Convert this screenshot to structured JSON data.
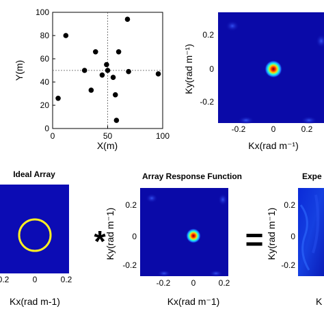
{
  "chart_data": [
    {
      "id": "antenna-layout",
      "type": "scatter",
      "title": "",
      "xlabel": "X(m)",
      "ylabel": "Y(m)",
      "xlim": [
        0,
        100
      ],
      "ylim": [
        0,
        100
      ],
      "xticks": [
        "0",
        "50",
        "100"
      ],
      "yticks": [
        "0",
        "20",
        "40",
        "60",
        "80",
        "100"
      ],
      "grid": false,
      "points": [
        {
          "x": 5,
          "y": 26
        },
        {
          "x": 12,
          "y": 80
        },
        {
          "x": 29,
          "y": 50
        },
        {
          "x": 35,
          "y": 33
        },
        {
          "x": 39,
          "y": 66
        },
        {
          "x": 45,
          "y": 46
        },
        {
          "x": 49,
          "y": 55
        },
        {
          "x": 50,
          "y": 50
        },
        {
          "x": 55,
          "y": 44
        },
        {
          "x": 57,
          "y": 29
        },
        {
          "x": 58,
          "y": 7
        },
        {
          "x": 60,
          "y": 66
        },
        {
          "x": 68,
          "y": 94
        },
        {
          "x": 69,
          "y": 49
        },
        {
          "x": 96,
          "y": 47
        }
      ],
      "marker_color": "#000000"
    },
    {
      "id": "array-response-top",
      "type": "heatmap",
      "title": "",
      "xlabel": "Kx(rad m⁻¹)",
      "ylabel": "Ky(rad m⁻¹)",
      "xlim": [
        -0.3,
        0.3
      ],
      "ylim": [
        -0.3,
        0.3
      ],
      "xticks": [
        "-0.2",
        "0",
        "0.2"
      ],
      "yticks": [
        "0.2",
        "0",
        "-0.2"
      ],
      "peak": [
        0,
        0
      ],
      "background_color": "#0a0aa8"
    },
    {
      "id": "ideal-array",
      "type": "heatmap",
      "title": "Ideal Array",
      "xlabel": "Kx(rad m-1)",
      "ylabel": "",
      "xlim": [
        -0.3,
        0.3
      ],
      "ylim": [
        -0.3,
        0.3
      ],
      "xticks": [
        "0.2",
        "0",
        "0.2"
      ],
      "ring_radius": 0.15,
      "ring_color": "#ffee22",
      "background_color": "#0c0cb4"
    },
    {
      "id": "array-response-bottom",
      "type": "heatmap",
      "title": "Array Response Function",
      "xlabel": "Kx(rad m⁻1)",
      "ylabel": "Ky(rad m⁻1)",
      "xlim": [
        -0.3,
        0.3
      ],
      "ylim": [
        -0.3,
        0.3
      ],
      "xticks": [
        "-0.2",
        "0",
        "0.2"
      ],
      "yticks": [
        "0.2",
        "0",
        "-0.2"
      ],
      "peak": [
        0,
        0
      ],
      "background_color": "#0a0aa8"
    },
    {
      "id": "expected-result",
      "type": "heatmap",
      "title": "Expe",
      "xlabel": "K",
      "ylabel": "Ky(rad m⁻1)",
      "yticks": [
        "0.2",
        "0",
        "-0.2"
      ],
      "background_color": "#0d1fc4"
    }
  ],
  "operators": {
    "convolve": "*",
    "equals": "="
  }
}
